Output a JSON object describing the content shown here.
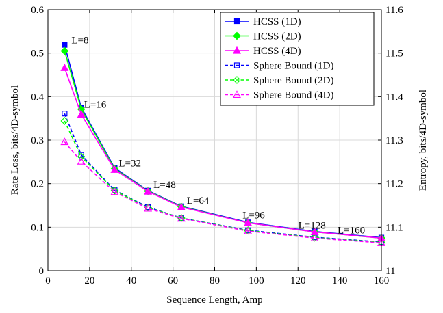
{
  "chart_data": {
    "type": "line",
    "title": "",
    "xlabel": "Sequence Length, Amp",
    "ylabel": "Rate Loss, bits/4D-symbol",
    "y2label": "Entropy, bits/4D-symbol",
    "xlim": [
      0,
      160
    ],
    "ylim": [
      0,
      0.6
    ],
    "y2lim": [
      11,
      11.6
    ],
    "xticks": [
      0,
      20,
      40,
      60,
      80,
      100,
      120,
      140,
      160
    ],
    "yticks": [
      0,
      0.1,
      0.2,
      0.3,
      0.4,
      0.5,
      0.6
    ],
    "y2ticks": [
      11,
      11.1,
      11.2,
      11.3,
      11.4,
      11.5,
      11.6
    ],
    "xtick_labels": [
      "0",
      "20",
      "40",
      "60",
      "80",
      "100",
      "120",
      "140",
      "160"
    ],
    "ytick_labels": [
      "0",
      "0.1",
      "0.2",
      "0.3",
      "0.4",
      "0.5",
      "0.6"
    ],
    "y2tick_labels": [
      "11",
      "11.1",
      "11.2",
      "11.3",
      "11.4",
      "11.5",
      "11.6"
    ],
    "grid": true,
    "legend_position": "top-right",
    "x": [
      8,
      16,
      32,
      48,
      64,
      96,
      128,
      160
    ],
    "series": [
      {
        "name": "HCSS (1D)",
        "color": "#0000ff",
        "marker": "square-filled",
        "dash": "solid",
        "values": [
          0.519,
          0.375,
          0.236,
          0.184,
          0.148,
          0.111,
          0.09,
          0.076
        ]
      },
      {
        "name": "HCSS (2D)",
        "color": "#00ff00",
        "marker": "diamond-filled",
        "dash": "solid",
        "values": [
          0.505,
          0.371,
          0.234,
          0.183,
          0.147,
          0.11,
          0.089,
          0.075
        ]
      },
      {
        "name": "HCSS (4D)",
        "color": "#ff00ff",
        "marker": "triangle-filled",
        "dash": "solid",
        "values": [
          0.466,
          0.359,
          0.232,
          0.182,
          0.146,
          0.11,
          0.089,
          0.075
        ]
      },
      {
        "name": "Sphere Bound (1D)",
        "color": "#0000ff",
        "marker": "square-open",
        "dash": "dashed",
        "values": [
          0.361,
          0.266,
          0.185,
          0.146,
          0.121,
          0.093,
          0.077,
          0.066
        ]
      },
      {
        "name": "Sphere Bound (2D)",
        "color": "#00ff00",
        "marker": "diamond-open",
        "dash": "dashed",
        "values": [
          0.344,
          0.262,
          0.184,
          0.145,
          0.121,
          0.092,
          0.076,
          0.065
        ]
      },
      {
        "name": "Sphere Bound (4D)",
        "color": "#ff00ff",
        "marker": "triangle-open",
        "dash": "dashed",
        "values": [
          0.296,
          0.251,
          0.181,
          0.143,
          0.12,
          0.091,
          0.075,
          0.064
        ]
      }
    ],
    "annotations": [
      {
        "text": "L=8",
        "x": 8,
        "y": 0.519
      },
      {
        "text": "L=16",
        "x": 16,
        "y": 0.375
      },
      {
        "text": "L=32",
        "x": 32,
        "y": 0.236
      },
      {
        "text": "L=48",
        "x": 48,
        "y": 0.184
      },
      {
        "text": "L=64",
        "x": 64,
        "y": 0.148
      },
      {
        "text": "L=96",
        "x": 96,
        "y": 0.111
      },
      {
        "text": "L=128",
        "x": 128,
        "y": 0.09
      },
      {
        "text": "L=160",
        "x": 160,
        "y": 0.076
      }
    ]
  }
}
